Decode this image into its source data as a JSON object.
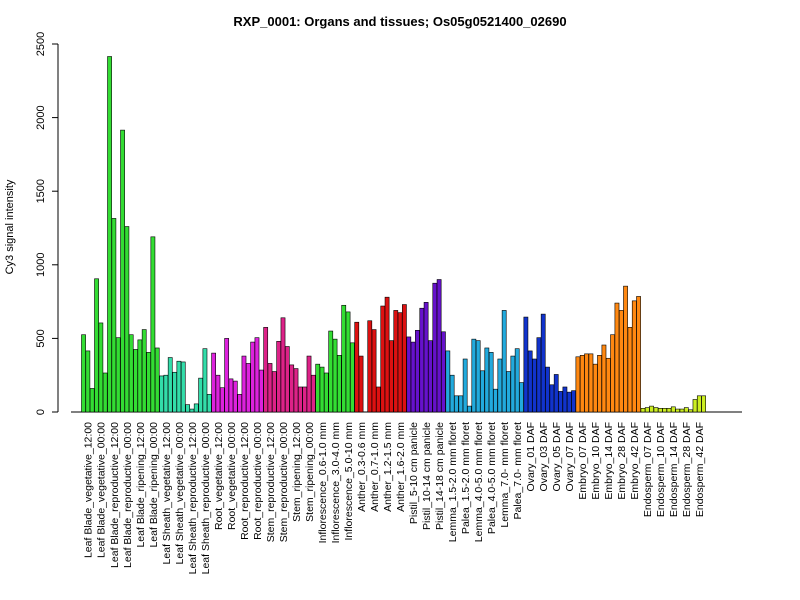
{
  "chart_data": {
    "type": "bar",
    "title": "RXP_0001: Organs and tissues; Os05g0521400_02690",
    "ylabel": "Cy3 signal intensity",
    "xlabel": "",
    "ylim": [
      0,
      2500
    ],
    "yticks": [
      0,
      500,
      1000,
      1500,
      2000,
      2500
    ],
    "grid": false,
    "groups": [
      {
        "label": "Leaf Blade_vegetative_12:00",
        "color": "#33dd33",
        "values": [
          525,
          415,
          160
        ]
      },
      {
        "label": "Leaf Blade_vegetative_00:00",
        "color": "#33dd33",
        "values": [
          905,
          605,
          265
        ]
      },
      {
        "label": "Leaf Blade_reproductive_12:00",
        "color": "#33dd33",
        "values": [
          2415,
          1315,
          505
        ]
      },
      {
        "label": "Leaf Blade_reproductive_00:00",
        "color": "#33dd33",
        "values": [
          1915,
          1260,
          525
        ]
      },
      {
        "label": "Leaf Blade_ripening_12:00",
        "color": "#33dd33",
        "values": [
          425,
          490,
          560
        ]
      },
      {
        "label": "Leaf Blade_ripening_00:00",
        "color": "#33dd33",
        "values": [
          405,
          1190,
          435
        ]
      },
      {
        "label": "Leaf Sheath_vegetative_12:00",
        "color": "#33ddaa",
        "values": [
          245,
          250,
          370
        ]
      },
      {
        "label": "Leaf Sheath_vegetative_00:00",
        "color": "#33ddaa",
        "values": [
          270,
          345,
          340
        ]
      },
      {
        "label": "Leaf Sheath_reproductive_12:00",
        "color": "#33ddaa",
        "values": [
          50,
          20,
          55
        ]
      },
      {
        "label": "Leaf Sheath_reproductive_00:00",
        "color": "#33ddaa",
        "values": [
          230,
          430,
          120
        ]
      },
      {
        "label": "Root_vegetative_12:00",
        "color": "#dd22dd",
        "values": [
          400,
          250,
          165
        ]
      },
      {
        "label": "Root_vegetative_00:00",
        "color": "#dd22dd",
        "values": [
          500,
          225,
          210
        ]
      },
      {
        "label": "Root_reproductive_12:00",
        "color": "#dd22dd",
        "values": [
          120,
          380,
          330
        ]
      },
      {
        "label": "Root_reproductive_00:00",
        "color": "#dd22dd",
        "values": [
          475,
          505,
          285
        ]
      },
      {
        "label": "Stem_reproductive_12:00",
        "color": "#dd2288",
        "values": [
          575,
          330,
          275
        ]
      },
      {
        "label": "Stem_reproductive_00:00",
        "color": "#dd2288",
        "values": [
          480,
          640,
          445
        ]
      },
      {
        "label": "Stem_ripening_12:00",
        "color": "#dd2288",
        "values": [
          320,
          295,
          170
        ]
      },
      {
        "label": "Stem_ripening_00:00",
        "color": "#dd2288",
        "values": [
          170,
          380,
          250
        ]
      },
      {
        "label": "Inflorescence_0.6-1.0 mm",
        "color": "#33dd33",
        "values": [
          325,
          305,
          265
        ]
      },
      {
        "label": "Inflorescence_3.0-4.0 mm",
        "color": "#33dd33",
        "values": [
          550,
          495,
          385
        ]
      },
      {
        "label": "Inflorescence_5.0-10 mm",
        "color": "#33dd33",
        "values": [
          725,
          680,
          470
        ]
      },
      {
        "label": "Anther_0.3-0.6 mm",
        "color": "#dd1111",
        "values": [
          610,
          380,
          0
        ]
      },
      {
        "label": "Anther_0.7-1.0 mm",
        "color": "#dd1111",
        "values": [
          620,
          560,
          170
        ]
      },
      {
        "label": "Anther_1.2-1.5 mm",
        "color": "#dd1111",
        "values": [
          720,
          780,
          485
        ]
      },
      {
        "label": "Anther_1.6-2.0 mm",
        "color": "#dd1111",
        "values": [
          690,
          675,
          730
        ]
      },
      {
        "label": "Pistil_5-10 cm panicle",
        "color": "#6611cc",
        "values": [
          510,
          475,
          555
        ]
      },
      {
        "label": "Pistil_10-14 cm panicle",
        "color": "#6611cc",
        "values": [
          705,
          745,
          485
        ]
      },
      {
        "label": "Pistil_14-18 cm panicle",
        "color": "#6611cc",
        "values": [
          875,
          900,
          545
        ]
      },
      {
        "label": "Lemma_1.5-2.0 mm floret",
        "color": "#22aadd",
        "values": [
          415,
          250,
          110
        ]
      },
      {
        "label": "Palea_1.5-2.0 mm floret",
        "color": "#22aadd",
        "values": [
          110,
          360,
          40
        ]
      },
      {
        "label": "Lemma_4.0-5.0 mm floret",
        "color": "#22aadd",
        "values": [
          495,
          485,
          280
        ]
      },
      {
        "label": "Palea_4.0-5.0 mm floret",
        "color": "#22aadd",
        "values": [
          435,
          405,
          155
        ]
      },
      {
        "label": "Lemma_7.0- mm floret",
        "color": "#22aadd",
        "values": [
          360,
          690,
          275
        ]
      },
      {
        "label": "Palea_7.0- mm floret",
        "color": "#22aadd",
        "values": [
          380,
          430,
          200
        ]
      },
      {
        "label": "Ovary_01 DAF",
        "color": "#1133cc",
        "values": [
          645,
          415,
          360
        ]
      },
      {
        "label": "Ovary_03 DAF",
        "color": "#1133cc",
        "values": [
          505,
          665,
          305
        ]
      },
      {
        "label": "Ovary_05 DAF",
        "color": "#1133cc",
        "values": [
          185,
          255,
          140
        ]
      },
      {
        "label": "Ovary_07 DAF",
        "color": "#1133cc",
        "values": [
          170,
          135,
          145
        ]
      },
      {
        "label": "Embryo_07 DAF",
        "color": "#ff8811",
        "values": [
          375,
          385,
          395
        ]
      },
      {
        "label": "Embryo_10 DAF",
        "color": "#ff8811",
        "values": [
          395,
          325,
          385
        ]
      },
      {
        "label": "Embryo_14 DAF",
        "color": "#ff8811",
        "values": [
          455,
          365,
          525
        ]
      },
      {
        "label": "Embryo_28 DAF",
        "color": "#ff8811",
        "values": [
          740,
          690,
          855
        ]
      },
      {
        "label": "Embryo_42 DAF",
        "color": "#ff8811",
        "values": [
          575,
          755,
          785
        ]
      },
      {
        "label": "Endosperm_07 DAF",
        "color": "#ccee22",
        "values": [
          25,
          30,
          40
        ]
      },
      {
        "label": "Endosperm_10 DAF",
        "color": "#ccee22",
        "values": [
          30,
          25,
          25
        ]
      },
      {
        "label": "Endosperm_14 DAF",
        "color": "#ccee22",
        "values": [
          25,
          35,
          20
        ]
      },
      {
        "label": "Endosperm_28 DAF",
        "color": "#ccee22",
        "values": [
          20,
          30,
          15
        ]
      },
      {
        "label": "Endosperm_42 DAF",
        "color": "#ccee22",
        "values": [
          85,
          110,
          110
        ]
      }
    ]
  }
}
